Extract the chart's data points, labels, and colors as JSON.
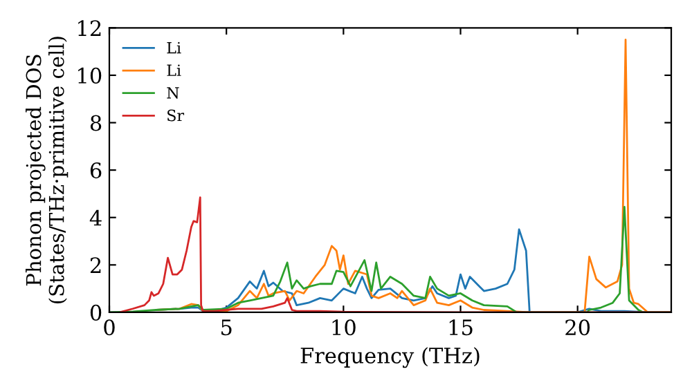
{
  "chart_data": {
    "type": "line",
    "xlabel": "Frequency (THz)",
    "ylabel": "Phonon projected DOS\n(States/THz·primitive cell)",
    "xlim": [
      0,
      24
    ],
    "ylim": [
      0,
      12
    ],
    "xticks": [
      0,
      5,
      10,
      15,
      20
    ],
    "yticks": [
      0,
      2,
      4,
      6,
      8,
      10,
      12
    ],
    "legend": "top left",
    "grid": false,
    "series": [
      {
        "name": "Li",
        "color": "#1f77b4",
        "x": [
          2,
          3,
          3.5,
          3.8,
          4.0,
          4.5,
          5,
          5.5,
          6,
          6.3,
          6.6,
          6.8,
          7,
          7.4,
          7.8,
          8,
          8.5,
          9,
          9.5,
          10,
          10.5,
          10.8,
          11,
          11.2,
          11.5,
          12,
          12.5,
          13,
          13.5,
          13.8,
          14,
          14.5,
          14.8,
          15,
          15.2,
          15.4,
          15.8,
          16,
          16.5,
          17,
          17.3,
          17.5,
          17.8,
          17.95,
          20,
          20.5,
          21,
          22,
          23,
          24
        ],
        "values": [
          0.1,
          0.15,
          0.2,
          0.2,
          0.05,
          0.05,
          0.2,
          0.6,
          1.3,
          1.0,
          1.75,
          1.1,
          1.25,
          0.9,
          0.8,
          0.3,
          0.4,
          0.6,
          0.5,
          1.0,
          0.8,
          1.5,
          1.0,
          0.6,
          0.95,
          1.0,
          0.6,
          0.5,
          0.6,
          1.1,
          0.8,
          0.6,
          0.7,
          1.6,
          1.0,
          1.5,
          1.1,
          0.9,
          1.0,
          1.2,
          1.8,
          3.5,
          2.6,
          0,
          0,
          0.15,
          0.05,
          0.05,
          0,
          0
        ]
      },
      {
        "name": "Li",
        "color": "#ff7f0e",
        "x": [
          2,
          3,
          3.5,
          3.8,
          4.0,
          5,
          5.5,
          6,
          6.3,
          6.6,
          6.8,
          7,
          7.5,
          7.7,
          8,
          8.3,
          8.8,
          9.2,
          9.5,
          9.7,
          9.85,
          10,
          10.2,
          10.5,
          11,
          11.2,
          11.5,
          12,
          12.3,
          12.5,
          13,
          13.5,
          13.7,
          14,
          14.5,
          15,
          15.5,
          16,
          17,
          18,
          20.3,
          20.5,
          20.8,
          21.2,
          21.7,
          21.9,
          22.05,
          22.2,
          22.4,
          22.6,
          23,
          24
        ],
        "values": [
          0.1,
          0.15,
          0.35,
          0.3,
          0.05,
          0.05,
          0.3,
          0.9,
          0.6,
          1.2,
          0.7,
          0.8,
          0.9,
          0.5,
          0.9,
          0.8,
          1.5,
          2.0,
          2.8,
          2.6,
          1.8,
          2.4,
          1.2,
          1.75,
          1.6,
          0.7,
          0.6,
          0.8,
          0.6,
          0.9,
          0.3,
          0.5,
          1.0,
          0.4,
          0.3,
          0.5,
          0.2,
          0.1,
          0.05,
          0,
          0,
          2.35,
          1.4,
          1.05,
          1.3,
          2.0,
          11.5,
          1.0,
          0.4,
          0.35,
          0,
          0
        ]
      },
      {
        "name": "N",
        "color": "#2ca02c",
        "x": [
          0,
          1,
          2,
          3,
          3.5,
          3.8,
          4.0,
          5,
          5.5,
          6,
          6.5,
          7,
          7.3,
          7.6,
          7.8,
          8,
          8.3,
          8.6,
          9,
          9.5,
          9.7,
          10,
          10.3,
          10.9,
          11.2,
          11.4,
          11.6,
          12,
          12.5,
          13,
          13.5,
          13.7,
          14,
          14.5,
          15,
          15.5,
          16,
          17,
          17.4,
          20.4,
          20.5,
          21,
          21.5,
          21.8,
          22.0,
          22.2,
          22.6,
          22.8,
          24
        ],
        "values": [
          0,
          0.03,
          0.1,
          0.15,
          0.25,
          0.3,
          0.1,
          0.15,
          0.4,
          0.5,
          0.6,
          0.7,
          1.3,
          2.1,
          1.0,
          1.35,
          1.0,
          1.1,
          1.2,
          1.2,
          1.75,
          1.7,
          1.1,
          2.2,
          0.9,
          2.1,
          1.0,
          1.5,
          1.2,
          0.7,
          0.6,
          1.5,
          1.0,
          0.7,
          0.8,
          0.5,
          0.3,
          0.25,
          0,
          0,
          0.1,
          0.2,
          0.4,
          0.8,
          4.45,
          0.5,
          0.1,
          0,
          0
        ]
      },
      {
        "name": "Sr",
        "color": "#d62728",
        "x": [
          0.5,
          1,
          1.5,
          1.7,
          1.8,
          1.9,
          2.1,
          2.3,
          2.5,
          2.7,
          2.9,
          3.1,
          3.3,
          3.5,
          3.6,
          3.75,
          3.88,
          3.92,
          4.0,
          4.5,
          5,
          5.5,
          6,
          6.5,
          7,
          7.5,
          7.6,
          7.8,
          8,
          9,
          10,
          15,
          24
        ],
        "values": [
          0.02,
          0.15,
          0.3,
          0.5,
          0.85,
          0.7,
          0.8,
          1.2,
          2.3,
          1.6,
          1.6,
          1.8,
          2.6,
          3.6,
          3.85,
          3.8,
          4.85,
          0.3,
          0.05,
          0.05,
          0.1,
          0.15,
          0.15,
          0.15,
          0.25,
          0.4,
          0.6,
          0.1,
          0.05,
          0.05,
          0.02,
          0,
          0
        ]
      }
    ]
  }
}
